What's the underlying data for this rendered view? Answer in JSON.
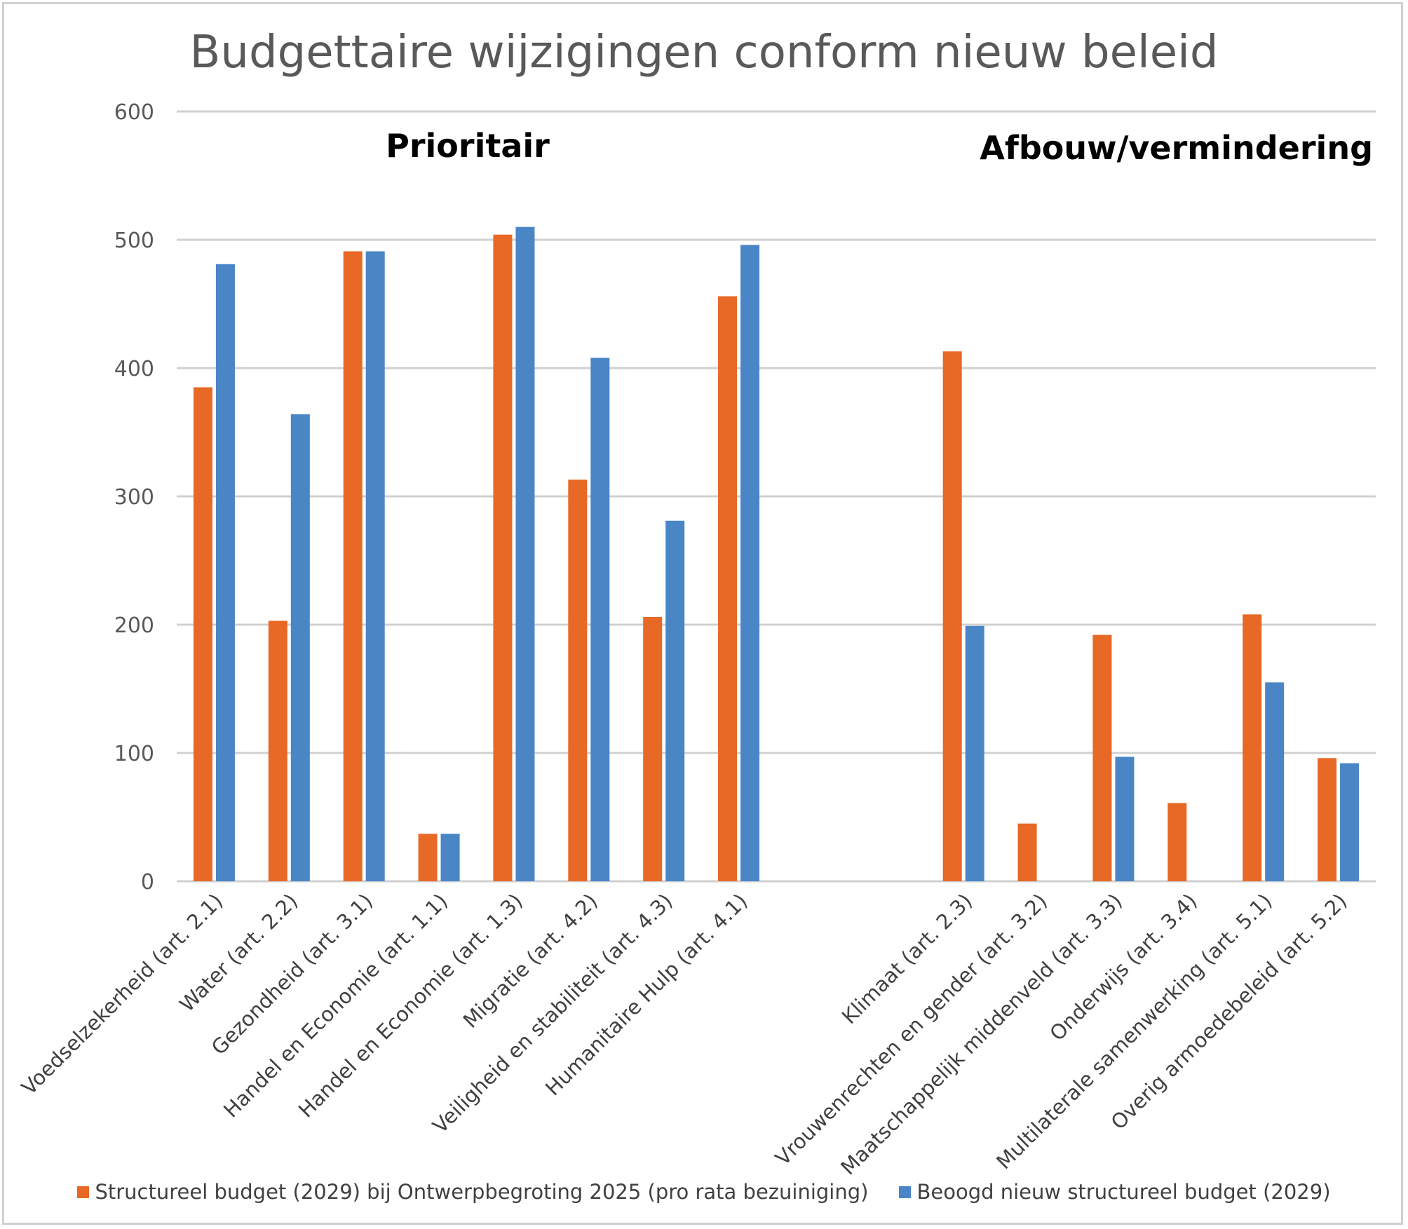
{
  "chart_data": {
    "type": "bar",
    "title": "Budgettaire wijzigingen conform nieuw beleid",
    "xlabel": "",
    "ylabel": "",
    "ylim": [
      0,
      600
    ],
    "yticks": [
      0,
      100,
      200,
      300,
      400,
      500,
      600
    ],
    "grid": true,
    "legend_position": "bottom",
    "group_labels": [
      {
        "text": "Prioritair",
        "position": "top-left"
      },
      {
        "text": "Afbouw/vermindering",
        "position": "top-right"
      }
    ],
    "categories": [
      "Voedselzekerheid (art. 2.1)",
      "Water (art. 2.2)",
      "Gezondheid (art. 3.1)",
      "Handel en Economie (art. 1.1)",
      "Handel en Economie (art. 1.3)",
      "Migratie (art. 4.2)",
      "Veiligheid en stabiliteit (art. 4.3)",
      "Humanitaire Hulp (art. 4.1)",
      "",
      "",
      "Klimaat (art. 2.3)",
      "Vrouwenrechten en gender (art. 3.2)",
      "Maatschappelijk middenveld (art. 3.3)",
      "Onderwijs (art. 3.4)",
      "Multilaterale samenwerking (art. 5.1)",
      "Overig armoedebeleid (art. 5.2)"
    ],
    "series": [
      {
        "name": "Structureel budget (2029) bij Ontwerpbegroting 2025 (pro rata bezuiniging)",
        "color": "#E86825",
        "values": [
          385,
          203,
          491,
          37,
          504,
          313,
          206,
          456,
          null,
          null,
          413,
          45,
          192,
          61,
          208,
          96
        ]
      },
      {
        "name": "Beoogd nieuw structureel budget (2029)",
        "color": "#4A86C6",
        "values": [
          481,
          364,
          491,
          37,
          510,
          408,
          281,
          496,
          null,
          null,
          199,
          0,
          97,
          0,
          155,
          92
        ]
      }
    ]
  }
}
